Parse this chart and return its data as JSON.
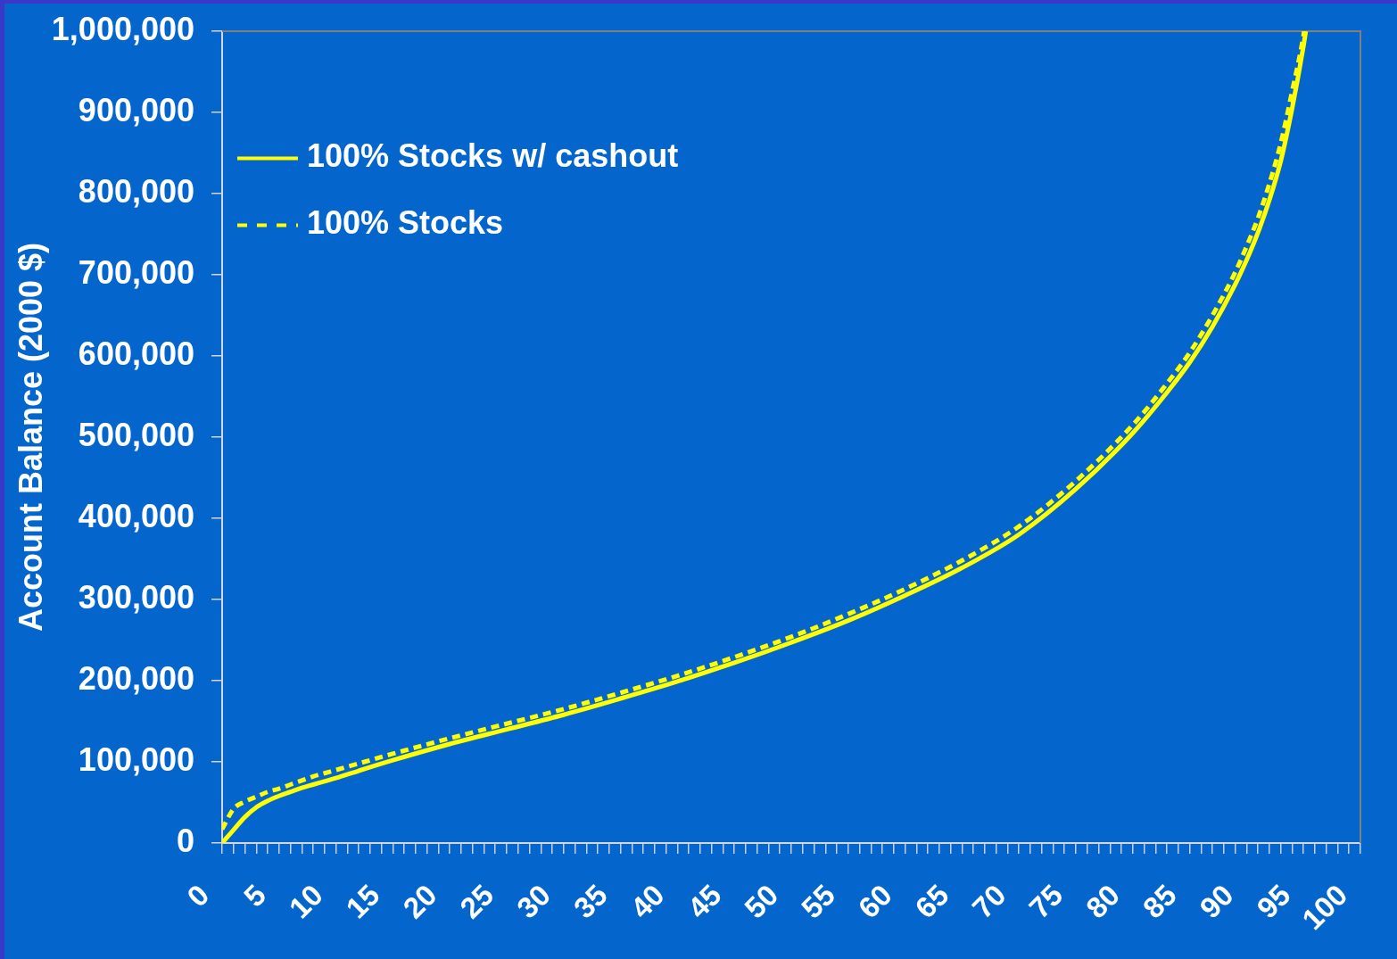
{
  "chart_data": {
    "type": "line",
    "ylabel": "Account Balance (2000 $)",
    "legend": "top left",
    "xlim": [
      0,
      100
    ],
    "xticks": [
      0,
      {
        "value": 1,
        "label": null
      },
      {
        "value": 2,
        "label": null
      },
      {
        "value": 3,
        "label": null
      },
      {
        "value": 4,
        "label": null
      },
      5,
      {
        "value": 6,
        "label": null
      },
      {
        "value": 7,
        "label": null
      },
      {
        "value": 8,
        "label": null
      },
      {
        "value": 9,
        "label": null
      },
      10,
      {
        "value": 11,
        "label": null
      },
      {
        "value": 12,
        "label": null
      },
      {
        "value": 13,
        "label": null
      },
      {
        "value": 14,
        "label": null
      },
      15,
      {
        "value": 16,
        "label": null
      },
      {
        "value": 17,
        "label": null
      },
      {
        "value": 18,
        "label": null
      },
      {
        "value": 19,
        "label": null
      },
      20,
      {
        "value": 21,
        "label": null
      },
      {
        "value": 22,
        "label": null
      },
      {
        "value": 23,
        "label": null
      },
      {
        "value": 24,
        "label": null
      },
      25,
      {
        "value": 26,
        "label": null
      },
      {
        "value": 27,
        "label": null
      },
      {
        "value": 28,
        "label": null
      },
      {
        "value": 29,
        "label": null
      },
      30,
      {
        "value": 31,
        "label": null
      },
      {
        "value": 32,
        "label": null
      },
      {
        "value": 33,
        "label": null
      },
      {
        "value": 34,
        "label": null
      },
      35,
      {
        "value": 36,
        "label": null
      },
      {
        "value": 37,
        "label": null
      },
      {
        "value": 38,
        "label": null
      },
      {
        "value": 39,
        "label": null
      },
      40,
      {
        "value": 41,
        "label": null
      },
      {
        "value": 42,
        "label": null
      },
      {
        "value": 43,
        "label": null
      },
      {
        "value": 44,
        "label": null
      },
      45,
      {
        "value": 46,
        "label": null
      },
      {
        "value": 47,
        "label": null
      },
      {
        "value": 48,
        "label": null
      },
      {
        "value": 49,
        "label": null
      },
      50,
      {
        "value": 51,
        "label": null
      },
      {
        "value": 52,
        "label": null
      },
      {
        "value": 53,
        "label": null
      },
      {
        "value": 54,
        "label": null
      },
      55,
      {
        "value": 56,
        "label": null
      },
      {
        "value": 57,
        "label": null
      },
      {
        "value": 58,
        "label": null
      },
      {
        "value": 59,
        "label": null
      },
      60,
      {
        "value": 61,
        "label": null
      },
      {
        "value": 62,
        "label": null
      },
      {
        "value": 63,
        "label": null
      },
      {
        "value": 64,
        "label": null
      },
      65,
      {
        "value": 66,
        "label": null
      },
      {
        "value": 67,
        "label": null
      },
      {
        "value": 68,
        "label": null
      },
      {
        "value": 69,
        "label": null
      },
      70,
      {
        "value": 71,
        "label": null
      },
      {
        "value": 72,
        "label": null
      },
      {
        "value": 73,
        "label": null
      },
      {
        "value": 74,
        "label": null
      },
      75,
      {
        "value": 76,
        "label": null
      },
      {
        "value": 77,
        "label": null
      },
      {
        "value": 78,
        "label": null
      },
      {
        "value": 79,
        "label": null
      },
      80,
      {
        "value": 81,
        "label": null
      },
      {
        "value": 82,
        "label": null
      },
      {
        "value": 83,
        "label": null
      },
      {
        "value": 84,
        "label": null
      },
      85,
      {
        "value": 86,
        "label": null
      },
      {
        "value": 87,
        "label": null
      },
      {
        "value": 88,
        "label": null
      },
      {
        "value": 89,
        "label": null
      },
      90,
      {
        "value": 91,
        "label": null
      },
      {
        "value": 92,
        "label": null
      },
      {
        "value": 93,
        "label": null
      },
      {
        "value": 94,
        "label": null
      },
      95,
      {
        "value": 96,
        "label": null
      },
      {
        "value": 97,
        "label": null
      },
      {
        "value": 98,
        "label": null
      },
      {
        "value": 99,
        "label": null
      },
      100
    ],
    "ylim": [
      0,
      1000000
    ],
    "yticks": [
      0,
      {
        "value": 100000,
        "label": "100,000"
      },
      {
        "value": 200000,
        "label": "200,000"
      },
      {
        "value": 300000,
        "label": "300,000"
      },
      {
        "value": 400000,
        "label": "400,000"
      },
      {
        "value": 500000,
        "label": "500,000"
      },
      {
        "value": 600000,
        "label": "600,000"
      },
      {
        "value": 700000,
        "label": "700,000"
      },
      {
        "value": 800000,
        "label": "800,000"
      },
      {
        "value": 900000,
        "label": "900,000"
      },
      {
        "value": 1000000,
        "label": "1,000,000"
      }
    ],
    "series": [
      {
        "name": "100% Stocks w/ cashout",
        "color": "#ffff00",
        "line_style": "solid",
        "x": [
          0,
          1,
          2,
          3,
          4,
          5,
          6,
          7,
          8,
          9,
          10,
          12,
          15,
          20,
          25,
          30,
          35,
          40,
          45,
          50,
          55,
          60,
          65,
          70,
          75,
          80,
          83,
          85,
          87,
          89,
          90,
          91,
          92,
          93,
          94,
          95,
          95.2
        ],
        "values": [
          0,
          16000,
          32000,
          44000,
          52000,
          58000,
          63000,
          68000,
          72000,
          76000,
          80000,
          89000,
          102000,
          122000,
          140000,
          158000,
          178000,
          199000,
          222000,
          247000,
          274000,
          305000,
          339000,
          380000,
          436000,
          505000,
          555000,
          592000,
          636000,
          688000,
          718000,
          752000,
          792000,
          840000,
          905000,
          982000,
          1000000
        ]
      },
      {
        "name": "100% Stocks",
        "color": "#ffff00",
        "line_style": "dashed",
        "x": [
          0,
          1,
          2,
          3,
          4,
          5,
          6,
          7,
          8,
          9,
          10,
          12,
          15,
          20,
          25,
          30,
          35,
          40,
          45,
          50,
          55,
          60,
          65,
          70,
          75,
          80,
          83,
          85,
          87,
          89,
          90,
          91,
          92,
          93,
          94,
          95,
          95.05
        ],
        "values": [
          17000,
          42000,
          51000,
          57000,
          63000,
          67000,
          72000,
          77000,
          82000,
          86000,
          90000,
          98000,
          110000,
          129000,
          147000,
          165000,
          185000,
          206000,
          229000,
          254000,
          282000,
          313000,
          348000,
          390000,
          446000,
          515000,
          566000,
          604000,
          650000,
          703000,
          735000,
          770000,
          812000,
          862000,
          926000,
          995000,
          1000000
        ]
      }
    ]
  }
}
